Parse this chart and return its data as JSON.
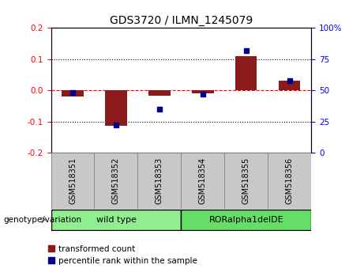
{
  "title": "GDS3720 / ILMN_1245079",
  "categories": [
    "GSM518351",
    "GSM518352",
    "GSM518353",
    "GSM518354",
    "GSM518355",
    "GSM518356"
  ],
  "red_values": [
    -0.02,
    -0.115,
    -0.018,
    -0.01,
    0.11,
    0.03
  ],
  "blue_values": [
    48,
    22,
    35,
    47,
    82,
    58
  ],
  "ylim_left": [
    -0.2,
    0.2
  ],
  "ylim_right": [
    0,
    100
  ],
  "yticks_left": [
    -0.2,
    -0.1,
    0.0,
    0.1,
    0.2
  ],
  "yticks_right": [
    0,
    25,
    50,
    75,
    100
  ],
  "ytick_labels_right": [
    "0",
    "25",
    "50",
    "75",
    "100%"
  ],
  "dotted_lines": [
    -0.1,
    0.1
  ],
  "group_labels": [
    "wild type",
    "RORalpha1delDE"
  ],
  "group_colors": [
    "#90EE90",
    "#66DD66"
  ],
  "genotype_label": "genotype/variation",
  "legend_red": "transformed count",
  "legend_blue": "percentile rank within the sample",
  "bar_color": "#8B1A1A",
  "blue_color": "#00008B",
  "header_color": "#C8C8C8",
  "bar_width": 0.5
}
